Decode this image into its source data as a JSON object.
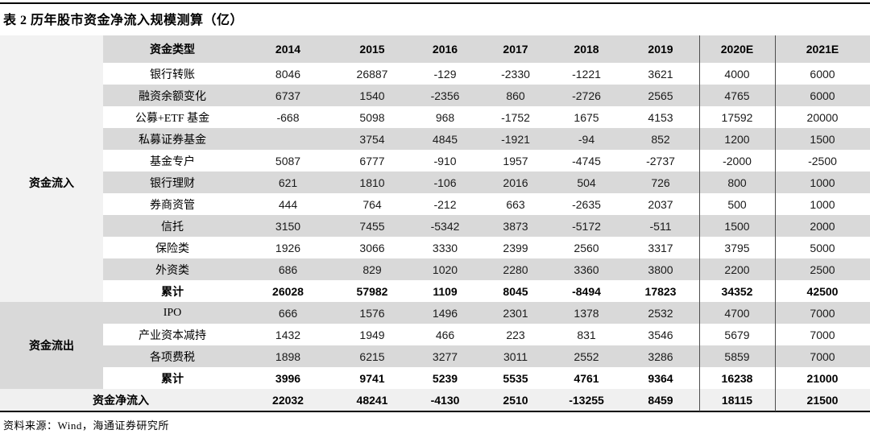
{
  "title": "表 2 历年股市资金净流入规模测算（亿）",
  "source": "资料来源：Wind，海通证券研究所",
  "colors": {
    "stripe_bg": "#d9d9d9",
    "header_bg": "#d9d9d9",
    "light_bg": "#f2f2f2",
    "net_row_bg": "#f0f0f0",
    "rule": "#000000",
    "column_divider": "#4d4d4d"
  },
  "table": {
    "type_header": "资金类型",
    "years": [
      "2014",
      "2015",
      "2016",
      "2017",
      "2018",
      "2019",
      "2020E",
      "2021E"
    ],
    "groups": [
      {
        "name": "资金流入",
        "rows": [
          {
            "label": "银行转账",
            "values": [
              "8046",
              "26887",
              "-129",
              "-2330",
              "-1221",
              "3621",
              "4000",
              "6000"
            ]
          },
          {
            "label": "融资余额变化",
            "values": [
              "6737",
              "1540",
              "-2356",
              "860",
              "-2726",
              "2565",
              "4765",
              "6000"
            ]
          },
          {
            "label": "公募+ETF 基金",
            "values": [
              "-668",
              "5098",
              "968",
              "-1752",
              "1675",
              "4153",
              "17592",
              "20000"
            ]
          },
          {
            "label": "私募证券基金",
            "values": [
              "",
              "3754",
              "4845",
              "-1921",
              "-94",
              "852",
              "1200",
              "1500"
            ]
          },
          {
            "label": "基金专户",
            "values": [
              "5087",
              "6777",
              "-910",
              "1957",
              "-4745",
              "-2737",
              "-2000",
              "-2500"
            ]
          },
          {
            "label": "银行理财",
            "values": [
              "621",
              "1810",
              "-106",
              "2016",
              "504",
              "726",
              "800",
              "1000"
            ]
          },
          {
            "label": "券商资管",
            "values": [
              "444",
              "764",
              "-212",
              "663",
              "-2635",
              "2037",
              "500",
              "1000"
            ]
          },
          {
            "label": "信托",
            "values": [
              "3150",
              "7455",
              "-5342",
              "3873",
              "-5172",
              "-511",
              "1500",
              "2000"
            ]
          },
          {
            "label": "保险类",
            "values": [
              "1926",
              "3066",
              "3330",
              "2399",
              "2560",
              "3317",
              "3795",
              "5000"
            ]
          },
          {
            "label": "外资类",
            "values": [
              "686",
              "829",
              "1020",
              "2280",
              "3360",
              "3800",
              "2200",
              "2500"
            ]
          },
          {
            "label": "累计",
            "bold": true,
            "values": [
              "26028",
              "57982",
              "1109",
              "8045",
              "-8494",
              "17823",
              "34352",
              "42500"
            ]
          }
        ]
      },
      {
        "name": "资金流出",
        "rows": [
          {
            "label": "IPO",
            "values": [
              "666",
              "1576",
              "1496",
              "2301",
              "1378",
              "2532",
              "4700",
              "7000"
            ]
          },
          {
            "label": "产业资本减持",
            "values": [
              "1432",
              "1949",
              "466",
              "223",
              "831",
              "3546",
              "5679",
              "7000"
            ]
          },
          {
            "label": "各项费税",
            "values": [
              "1898",
              "6215",
              "3277",
              "3011",
              "2552",
              "3286",
              "5859",
              "7000"
            ]
          },
          {
            "label": "累计",
            "bold": true,
            "values": [
              "3996",
              "9741",
              "5239",
              "5535",
              "4761",
              "9364",
              "16238",
              "21000"
            ]
          }
        ]
      }
    ],
    "net": {
      "label": "资金净流入",
      "values": [
        "22032",
        "48241",
        "-4130",
        "2510",
        "-13255",
        "8459",
        "18115",
        "21500"
      ]
    }
  }
}
